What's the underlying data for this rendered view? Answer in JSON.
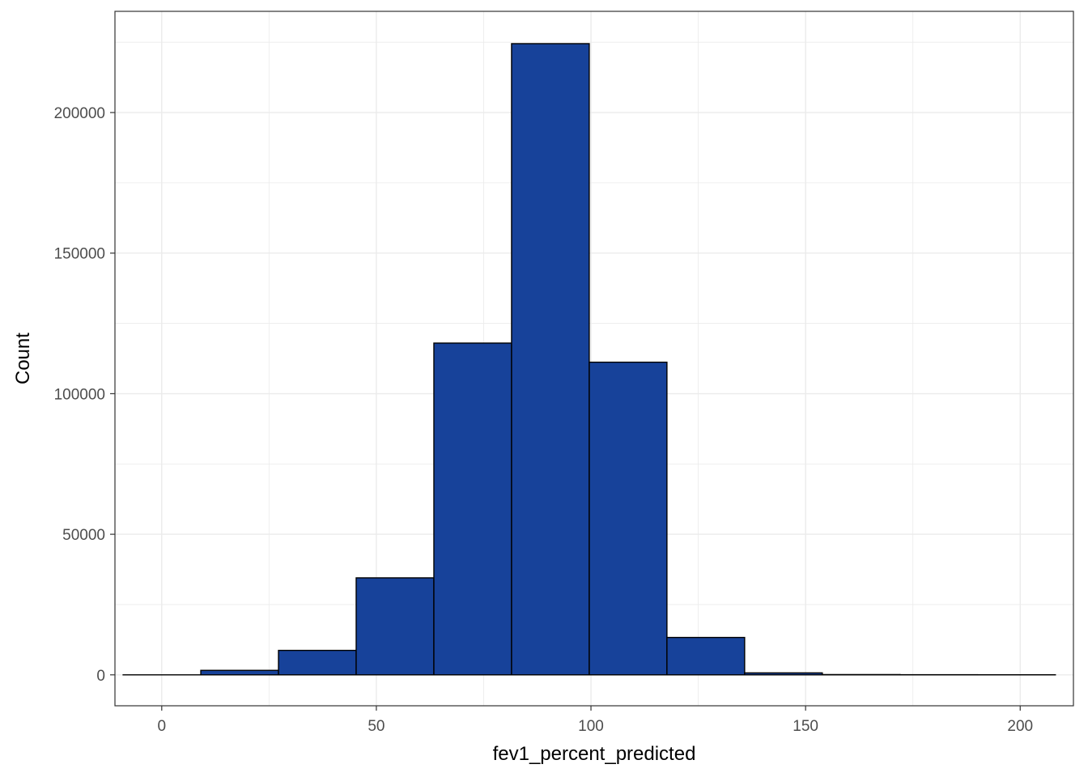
{
  "chart_data": {
    "type": "bar",
    "title": "",
    "xlabel": "fev1_percent_predicted",
    "ylabel": "Count",
    "xlim": [
      -10.9,
      212.4
    ],
    "ylim": [
      -11000,
      236000
    ],
    "x_ticks": [
      0,
      50,
      100,
      150,
      200
    ],
    "x_tick_labels": [
      "0",
      "50",
      "100",
      "150",
      "200"
    ],
    "y_ticks": [
      0,
      50000,
      100000,
      150000,
      200000
    ],
    "y_tick_labels": [
      "0",
      "50000",
      "100000",
      "150000",
      "200000"
    ],
    "bin_width": 18.1,
    "bins": [
      {
        "start": -9.0,
        "end": 9.1,
        "count": 0
      },
      {
        "start": 9.1,
        "end": 27.2,
        "count": 1600
      },
      {
        "start": 27.2,
        "end": 45.3,
        "count": 8700
      },
      {
        "start": 45.3,
        "end": 63.4,
        "count": 34500
      },
      {
        "start": 63.4,
        "end": 81.5,
        "count": 118000
      },
      {
        "start": 81.5,
        "end": 99.6,
        "count": 224500
      },
      {
        "start": 99.6,
        "end": 117.7,
        "count": 111200
      },
      {
        "start": 117.7,
        "end": 135.8,
        "count": 13300
      },
      {
        "start": 135.8,
        "end": 153.9,
        "count": 700
      },
      {
        "start": 153.9,
        "end": 172.0,
        "count": 100
      },
      {
        "start": 172.0,
        "end": 190.1,
        "count": 50
      },
      {
        "start": 190.1,
        "end": 208.2,
        "count": 30
      }
    ],
    "bar_fill": "#17429a",
    "bar_stroke": "#000000",
    "grid": true,
    "grid_color": "#ebebeb",
    "panel_border_color": "#333333"
  }
}
